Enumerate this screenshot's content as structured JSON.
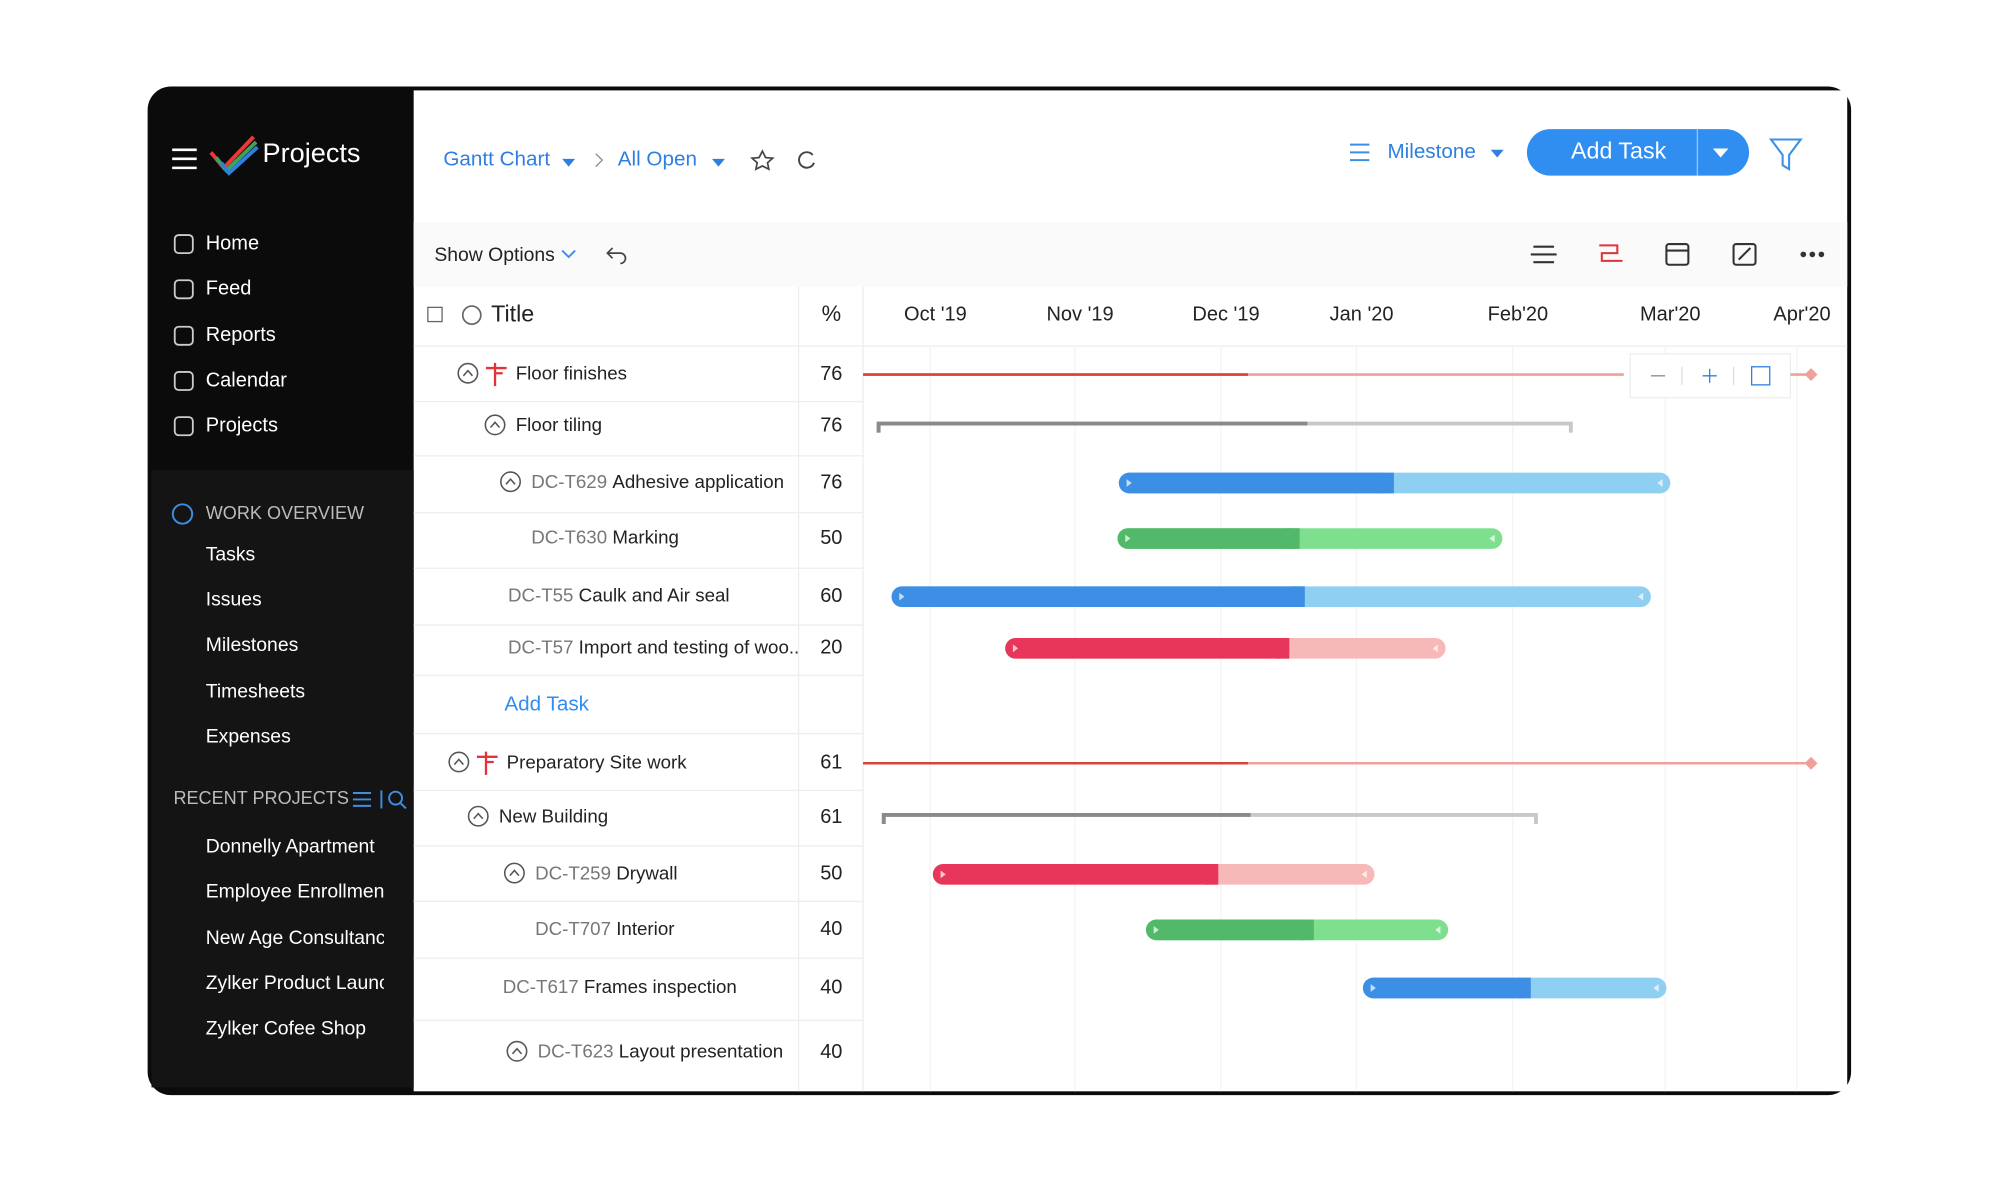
{
  "app": {
    "title": "Projects"
  },
  "nav": [
    "Home",
    "Feed",
    "Reports",
    "Calendar",
    "Projects"
  ],
  "work_overview": {
    "title": "WORK OVERVIEW",
    "items": [
      "Tasks",
      "Issues",
      "Milestones",
      "Timesheets",
      "Expenses"
    ]
  },
  "recent_projects": {
    "title": "RECENT PROJECTS",
    "items": [
      "Donnelly Apartment",
      "Employee Enrollmen",
      "New Age Consultanc",
      "Zylker Product Launc",
      "Zylker Cofee Shop"
    ]
  },
  "toolbar": {
    "breadcrumb": [
      "Gantt Chart",
      "All Open"
    ],
    "milestone": "Milestone",
    "add_task": "Add Task",
    "show_options": "Show Options"
  },
  "table": {
    "columns": [
      "Title",
      "%"
    ],
    "rows": [
      {
        "title": "Floor finishes",
        "percent": 76
      },
      {
        "title": "Floor tiling",
        "percent": 76
      },
      {
        "id": "DC-T629",
        "title": "Adhesive application",
        "percent": 76
      },
      {
        "id": "DC-T630",
        "title": "Marking",
        "percent": 50
      },
      {
        "id": "DC-T55",
        "title": "Caulk and Air seal",
        "percent": 60
      },
      {
        "id": "DC-T57",
        "title": "Import and testing of woo..",
        "percent": 20
      },
      {
        "title": "Preparatory Site work",
        "percent": 61
      },
      {
        "title": "New Building",
        "percent": 61
      },
      {
        "id": "DC-T259",
        "title": "Drywall",
        "percent": 50
      },
      {
        "id": "DC-T707",
        "title": "Interior",
        "percent": 40
      },
      {
        "id": "DC-T617",
        "title": "Frames inspection",
        "percent": 40
      },
      {
        "id": "DC-T623",
        "title": "Layout presentation",
        "percent": 40
      }
    ],
    "add_task": "Add Task"
  },
  "timeline": {
    "months": [
      "Oct '19",
      "Nov '19",
      "Dec '19",
      "Jan '20",
      "Feb'20",
      "Mar'20",
      "Apr'20"
    ]
  }
}
